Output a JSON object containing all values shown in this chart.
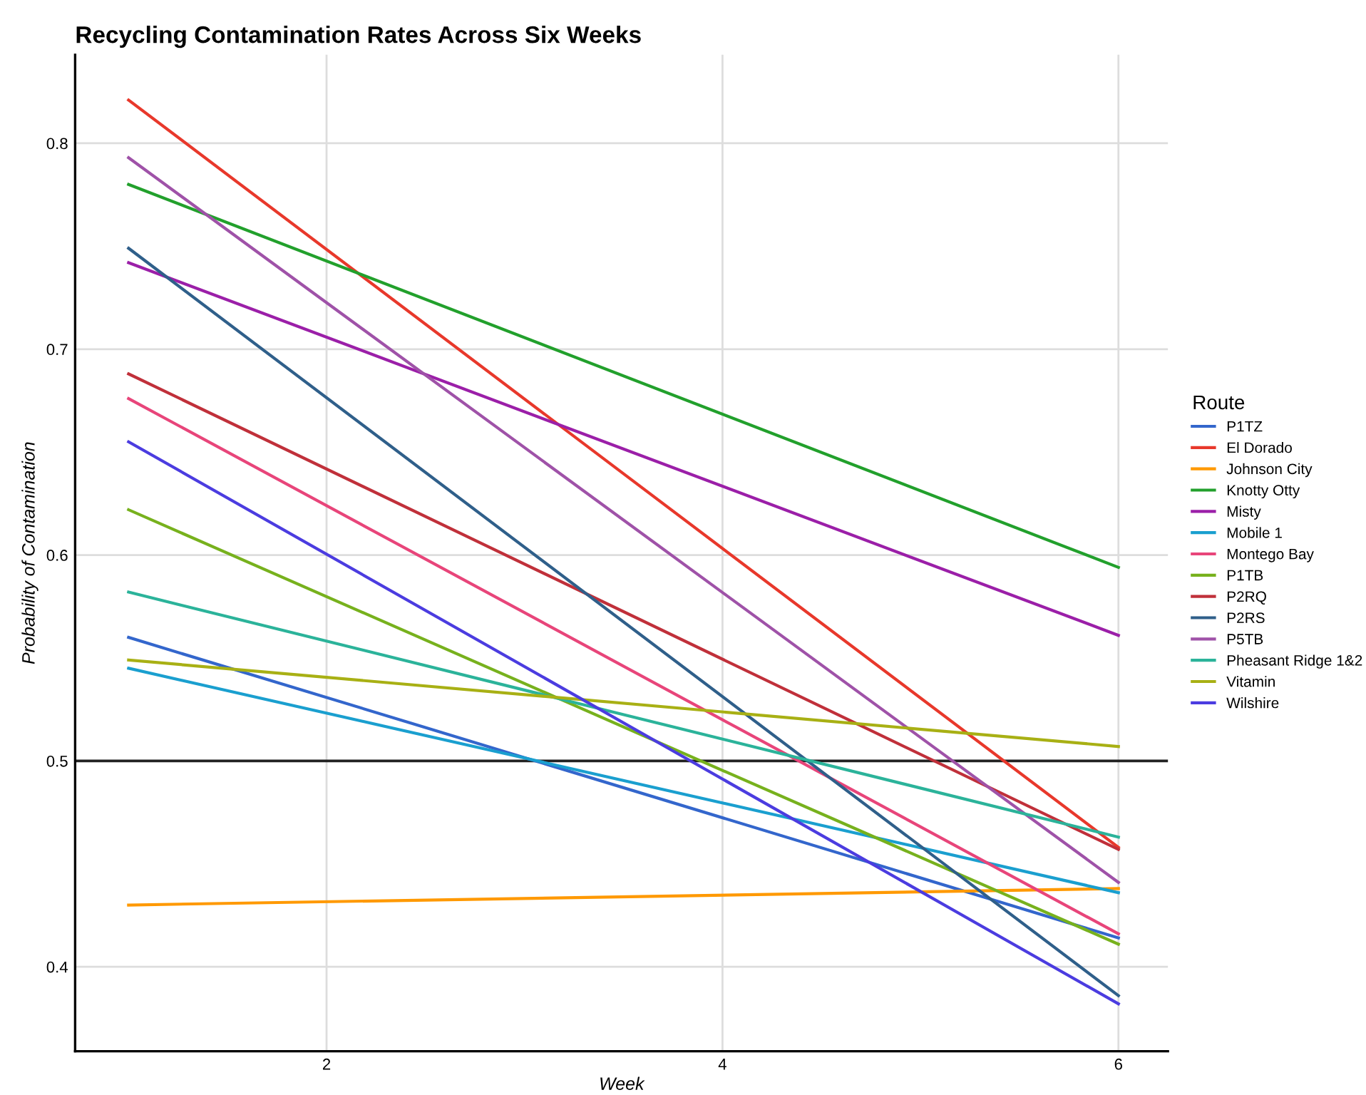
{
  "chart_data": {
    "type": "line",
    "title": "Recycling Contamination Rates Across Six Weeks",
    "xlabel": "Week",
    "ylabel": "Probability of Contamination",
    "legend_title": "Route",
    "x": [
      1,
      6
    ],
    "xlim": [
      0.73,
      6.25
    ],
    "xticks": [
      2,
      4,
      6
    ],
    "ylim": [
      0.359,
      0.843
    ],
    "yticks": [
      0.4,
      0.5,
      0.6,
      0.7,
      0.8
    ],
    "grid": true,
    "legend": "right",
    "marker": "none",
    "line_style": "solid",
    "ref_lines": [
      {
        "axis": "y",
        "value": 0.5,
        "color": "#222222",
        "line_style": "solid"
      }
    ],
    "series": [
      {
        "name": "P1TZ",
        "color": "#3366cc",
        "values": [
          0.56,
          0.414
        ]
      },
      {
        "name": "El Dorado",
        "color": "#e8382b",
        "values": [
          0.821,
          0.458
        ]
      },
      {
        "name": "Johnson City",
        "color": "#ff9900",
        "values": [
          0.43,
          0.438
        ]
      },
      {
        "name": "Knotty Otty",
        "color": "#22a02c",
        "values": [
          0.78,
          0.594
        ]
      },
      {
        "name": "Misty",
        "color": "#9b1fa8",
        "values": [
          0.742,
          0.561
        ]
      },
      {
        "name": "Mobile 1",
        "color": "#1a9fcf",
        "values": [
          0.545,
          0.436
        ]
      },
      {
        "name": "Montego Bay",
        "color": "#e8457a",
        "values": [
          0.676,
          0.416
        ]
      },
      {
        "name": "P1TB",
        "color": "#77b11d",
        "values": [
          0.622,
          0.411
        ]
      },
      {
        "name": "P2RQ",
        "color": "#c0303a",
        "values": [
          0.688,
          0.457
        ]
      },
      {
        "name": "P2RS",
        "color": "#2f5f8a",
        "values": [
          0.749,
          0.386
        ]
      },
      {
        "name": "P5TB",
        "color": "#9f52a8",
        "values": [
          0.793,
          0.441
        ]
      },
      {
        "name": "Pheasant Ridge 1&2",
        "color": "#2bb39a",
        "values": [
          0.582,
          0.463
        ]
      },
      {
        "name": "Vitamin",
        "color": "#a8b014",
        "values": [
          0.549,
          0.507
        ]
      },
      {
        "name": "Wilshire",
        "color": "#4b3ce0",
        "values": [
          0.655,
          0.382
        ]
      }
    ]
  }
}
